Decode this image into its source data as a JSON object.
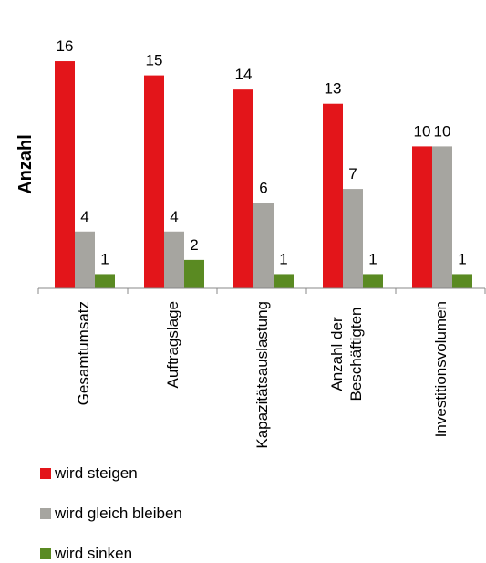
{
  "chart_data": {
    "type": "bar",
    "ylabel": "Anzahl",
    "categories": [
      [
        "Gesamtumsatz"
      ],
      [
        "Auftragslage"
      ],
      [
        "Kapazitätsauslastung"
      ],
      [
        "Anzahl der",
        "Beschäftigten"
      ],
      [
        "Investitionsvolumen"
      ]
    ],
    "series": [
      {
        "name": "wird steigen",
        "color": "#e3151a",
        "values": [
          16,
          15,
          14,
          13,
          10
        ]
      },
      {
        "name": "wird gleich bleiben",
        "color": "#a6a5a0",
        "values": [
          4,
          4,
          6,
          7,
          10
        ]
      },
      {
        "name": "wird sinken",
        "color": "#5a8a22",
        "values": [
          1,
          2,
          1,
          1,
          1
        ]
      }
    ],
    "ylim": [
      0,
      17
    ],
    "grid": false,
    "data_labels": true,
    "legend_position": "bottom-left"
  }
}
